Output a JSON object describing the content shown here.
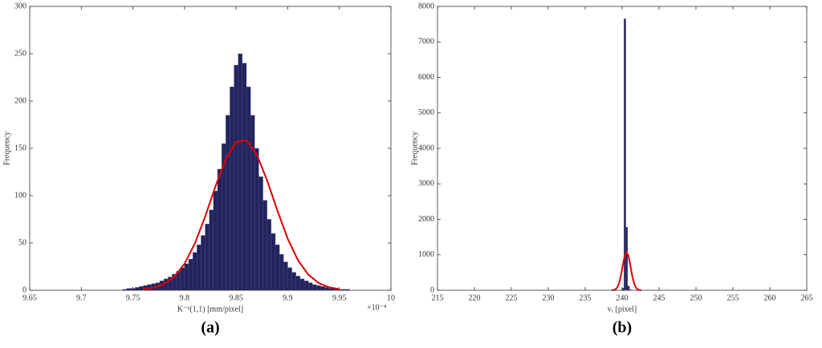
{
  "chart_data": [
    {
      "type": "histogram",
      "label": "(a)",
      "ylabel": "Frequency",
      "xlabel": "K⁻¹(1,1) [mm/pixel]",
      "x_multiplier": "×10⁻⁴",
      "color": "#23235e",
      "bins": [
        9.74,
        9.744,
        9.748,
        9.752,
        9.756,
        9.76,
        9.764,
        9.768,
        9.772,
        9.776,
        9.78,
        9.784,
        9.788,
        9.792,
        9.796,
        9.8,
        9.804,
        9.808,
        9.812,
        9.816,
        9.82,
        9.824,
        9.828,
        9.832,
        9.836,
        9.84,
        9.844,
        9.848,
        9.852,
        9.856,
        9.86,
        9.864,
        9.868,
        9.872,
        9.876,
        9.88,
        9.884,
        9.888,
        9.892,
        9.896,
        9.9,
        9.904,
        9.908,
        9.912,
        9.916,
        9.92,
        9.924,
        9.928,
        9.932,
        9.936,
        9.94,
        9.944,
        9.948,
        9.952,
        9.956,
        9.96
      ],
      "values": [
        1,
        2,
        2,
        3,
        4,
        5,
        6,
        7,
        8,
        10,
        12,
        14,
        17,
        20,
        24,
        28,
        33,
        40,
        48,
        58,
        70,
        85,
        105,
        128,
        155,
        185,
        215,
        238,
        250,
        240,
        215,
        185,
        150,
        120,
        95,
        75,
        60,
        48,
        38,
        30,
        24,
        19,
        15,
        12,
        10,
        8,
        6,
        5,
        4,
        3,
        2,
        2,
        1,
        1,
        1
      ],
      "fit": {
        "color": "#e00000",
        "x": [
          9.76,
          9.77,
          9.78,
          9.79,
          9.8,
          9.81,
          9.82,
          9.83,
          9.84,
          9.85,
          9.86,
          9.87,
          9.88,
          9.89,
          9.9,
          9.91,
          9.92,
          9.93,
          9.94,
          9.95
        ],
        "y": [
          1,
          2.6,
          6.5,
          14.2,
          28,
          49.4,
          77.9,
          109.9,
          138.8,
          156.8,
          158.6,
          143.5,
          116.2,
          84.2,
          54.5,
          31.6,
          16.5,
          7.6,
          3.2,
          1.2
        ]
      },
      "xlim": [
        9.65,
        10
      ],
      "xticks": [
        9.65,
        9.7,
        9.75,
        9.8,
        9.85,
        9.9,
        9.95,
        10
      ],
      "ylim": [
        0,
        300
      ],
      "yticks": [
        0,
        50,
        100,
        150,
        200,
        250,
        300
      ]
    },
    {
      "type": "histogram",
      "label": "(b)",
      "ylabel": "Frequency",
      "xlabel": "vᵣ [pixel]",
      "color": "#23235e",
      "bins": [
        239.5,
        239.75,
        240,
        240.25,
        240.5,
        240.75,
        241,
        241.25,
        241.5
      ],
      "values": [
        0,
        10,
        60,
        7650,
        1780,
        120,
        15,
        0
      ],
      "fit": {
        "color": "#e00000",
        "x": [
          238.6,
          238.85,
          239.1,
          239.35,
          239.6,
          239.85,
          240.1,
          240.35,
          240.6,
          240.85,
          241.1,
          241.35,
          241.6,
          241.85,
          242.1,
          242.35,
          242.6
        ],
        "y": [
          1.5,
          6.8,
          26,
          82,
          207,
          426,
          715,
          974,
          1080,
          974,
          715,
          426,
          207,
          82,
          26,
          6.8,
          1.5
        ]
      },
      "xlim": [
        215,
        265
      ],
      "xticks": [
        215,
        220,
        225,
        230,
        235,
        240,
        245,
        250,
        255,
        260,
        265
      ],
      "ylim": [
        0,
        8000
      ],
      "yticks": [
        0,
        1000,
        2000,
        3000,
        4000,
        5000,
        6000,
        7000,
        8000
      ]
    }
  ]
}
